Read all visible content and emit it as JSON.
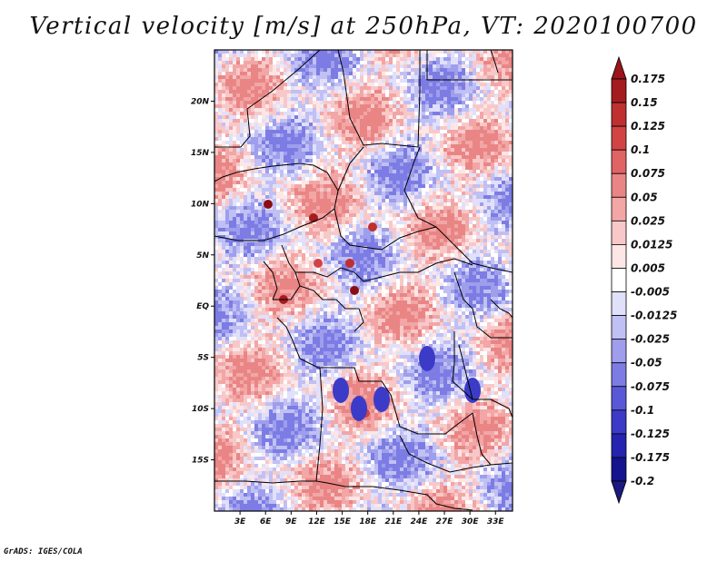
{
  "title": "Vertical velocity [m/s] at 250hPa, VT: 2020100700",
  "credit": "GrADS: IGES/COLA",
  "map": {
    "lon_range": [
      0,
      35
    ],
    "lat_range": [
      -20,
      25
    ],
    "lat_ticks": [
      {
        "value": 20,
        "label": "20N"
      },
      {
        "value": 15,
        "label": "15N"
      },
      {
        "value": 10,
        "label": "10N"
      },
      {
        "value": 5,
        "label": "5N"
      },
      {
        "value": 0,
        "label": "EQ"
      },
      {
        "value": -5,
        "label": "5S"
      },
      {
        "value": -10,
        "label": "10S"
      },
      {
        "value": -15,
        "label": "15S"
      }
    ],
    "lon_ticks": [
      {
        "value": 3,
        "label": "3E"
      },
      {
        "value": 6,
        "label": "6E"
      },
      {
        "value": 9,
        "label": "9E"
      },
      {
        "value": 12,
        "label": "12E"
      },
      {
        "value": 15,
        "label": "15E"
      },
      {
        "value": 18,
        "label": "18E"
      },
      {
        "value": 21,
        "label": "21E"
      },
      {
        "value": 24,
        "label": "24E"
      },
      {
        "value": 27,
        "label": "27E"
      },
      {
        "value": 30,
        "label": "30E"
      },
      {
        "value": 33,
        "label": "33E"
      }
    ]
  },
  "colorbar": {
    "labels": [
      "0.175",
      "0.15",
      "0.125",
      "0.1",
      "0.075",
      "0.05",
      "0.025",
      "0.0125",
      "0.005",
      "-0.005",
      "-0.0125",
      "-0.025",
      "-0.05",
      "-0.075",
      "-0.1",
      "-0.125",
      "-0.175",
      "-0.2"
    ],
    "colors": [
      "#8b0d12",
      "#a51c20",
      "#bf3030",
      "#d24444",
      "#e06464",
      "#ea8585",
      "#f2a6a6",
      "#f8c8c8",
      "#fde6e6",
      "#ffffff",
      "#e0e0fb",
      "#c0c0f4",
      "#9e9eec",
      "#7c7ce4",
      "#5959d8",
      "#3b3bc8",
      "#2424b0",
      "#14148e",
      "#0a0a6e"
    ],
    "top_arrow_color": "#9b1418",
    "bottom_arrow_color": "#1a1a80"
  },
  "colors": {
    "positive_base": "#f4b6b6",
    "negative_base": "#a8a8ee",
    "border": "#000000"
  }
}
